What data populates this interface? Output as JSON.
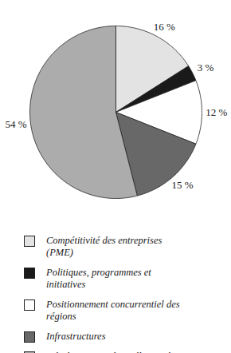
{
  "chart_data": {
    "type": "pie",
    "categories": [
      "Compétitivité des entreprises (PME)",
      "Politiques, programmes et initiatives",
      "Positionnement concurrentiel des régions",
      "Infrastructures",
      "Développement des collectivités"
    ],
    "values": [
      16,
      3,
      12,
      15,
      54
    ],
    "value_labels": [
      "16 %",
      "3 %",
      "12 %",
      "15 %",
      "54 %"
    ],
    "colors": [
      "#e3e3e3",
      "#1a1a1a",
      "#ffffff",
      "#686868",
      "#acacac"
    ],
    "data_labels": true,
    "tick_labels": false
  }
}
